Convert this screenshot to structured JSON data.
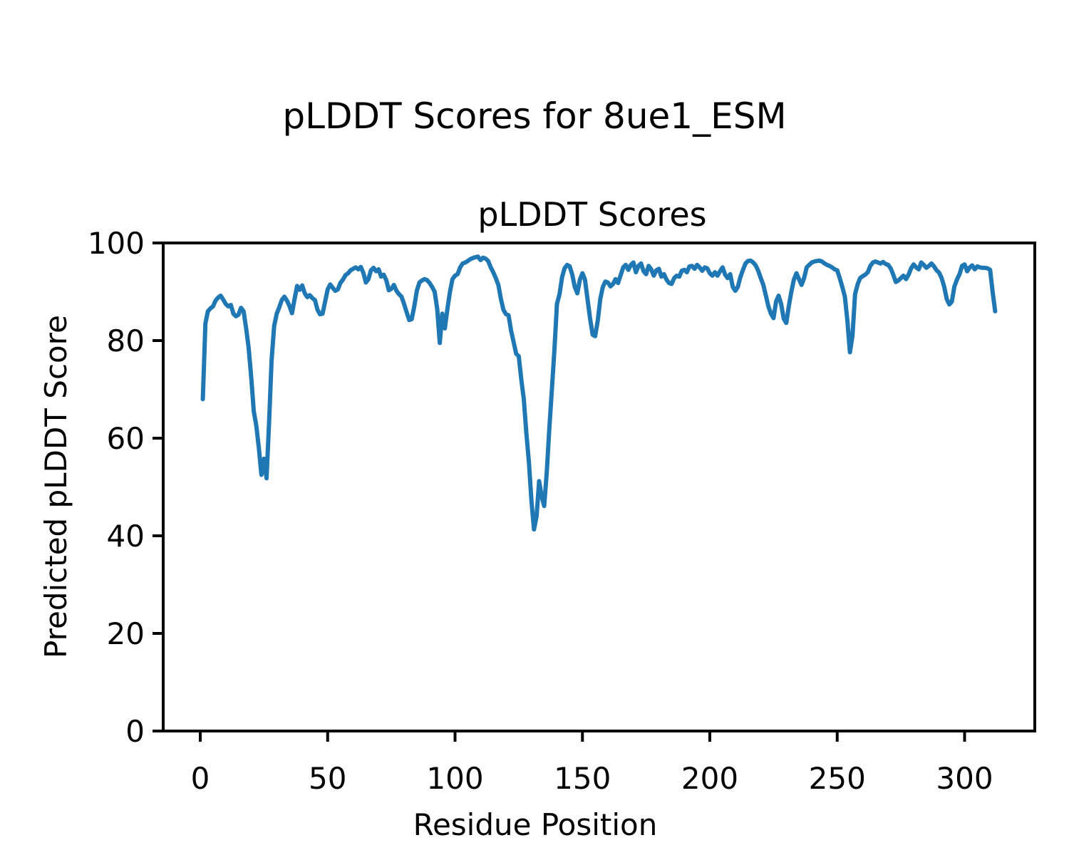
{
  "figure": {
    "suptitle": "pLDDT Scores for 8ue1_ESM"
  },
  "chart_data": {
    "type": "line",
    "title": "pLDDT Scores",
    "xlabel": "Residue Position",
    "ylabel": "Predicted pLDDT Score",
    "line_color": "#1f77b4",
    "axis_color": "#000000",
    "background_color": "#ffffff",
    "grid": false,
    "legend": "none",
    "xlim": [
      -14.55,
      327.55
    ],
    "ylim": [
      0,
      100
    ],
    "x_ticks": [
      0,
      50,
      100,
      150,
      200,
      250,
      300
    ],
    "y_ticks": [
      0,
      20,
      40,
      60,
      80,
      100
    ],
    "series": [
      {
        "name": "pLDDT",
        "points": [
          [
            1,
            68
          ],
          [
            2,
            83.5
          ],
          [
            3,
            86
          ],
          [
            4,
            86.6
          ],
          [
            5,
            87
          ],
          [
            6,
            88.2
          ],
          [
            7,
            88.8
          ],
          [
            8,
            89.2
          ],
          [
            9,
            88.4
          ],
          [
            10,
            87.5
          ],
          [
            11,
            87
          ],
          [
            12,
            87.3
          ],
          [
            13,
            85.5
          ],
          [
            14,
            85
          ],
          [
            15,
            85.3
          ],
          [
            16,
            86.7
          ],
          [
            17,
            86
          ],
          [
            18,
            82.5
          ],
          [
            19,
            78.5
          ],
          [
            20,
            72.5
          ],
          [
            21,
            65.5
          ],
          [
            22,
            62.5
          ],
          [
            23,
            58
          ],
          [
            24,
            52.5
          ],
          [
            25,
            55.8
          ],
          [
            26,
            51.8
          ],
          [
            27,
            63
          ],
          [
            28,
            76
          ],
          [
            29,
            83
          ],
          [
            30,
            85.5
          ],
          [
            31,
            86.8
          ],
          [
            32,
            88.3
          ],
          [
            33,
            89
          ],
          [
            34,
            88.2
          ],
          [
            35,
            87.1
          ],
          [
            36,
            85.6
          ],
          [
            37,
            88.5
          ],
          [
            38,
            91.2
          ],
          [
            39,
            90.4
          ],
          [
            40,
            91.3
          ],
          [
            41,
            89.7
          ],
          [
            42,
            88.9
          ],
          [
            43,
            89.3
          ],
          [
            44,
            88.7
          ],
          [
            45,
            88.3
          ],
          [
            46,
            86.3
          ],
          [
            47,
            85.4
          ],
          [
            48,
            85.5
          ],
          [
            49,
            88
          ],
          [
            50,
            90.5
          ],
          [
            51,
            91.5
          ],
          [
            52,
            90.8
          ],
          [
            53,
            90.2
          ],
          [
            54,
            90.5
          ],
          [
            55,
            91.8
          ],
          [
            56,
            92.5
          ],
          [
            57,
            93.4
          ],
          [
            58,
            93.8
          ],
          [
            59,
            94.4
          ],
          [
            60,
            94.7
          ],
          [
            61,
            95
          ],
          [
            62,
            94.6
          ],
          [
            63,
            95.1
          ],
          [
            64,
            93.9
          ],
          [
            65,
            91.9
          ],
          [
            66,
            92.6
          ],
          [
            67,
            94.4
          ],
          [
            68,
            94.9
          ],
          [
            69,
            94.2
          ],
          [
            70,
            94.6
          ],
          [
            71,
            93.1
          ],
          [
            72,
            93.5
          ],
          [
            73,
            92.4
          ],
          [
            74,
            90.3
          ],
          [
            75,
            90.6
          ],
          [
            76,
            91.4
          ],
          [
            77,
            90.2
          ],
          [
            78,
            89.5
          ],
          [
            79,
            89
          ],
          [
            80,
            87.5
          ],
          [
            81,
            85.8
          ],
          [
            82,
            84.2
          ],
          [
            83,
            84.4
          ],
          [
            84,
            87
          ],
          [
            85,
            90.2
          ],
          [
            86,
            91.9
          ],
          [
            87,
            92.3
          ],
          [
            88,
            92.6
          ],
          [
            89,
            92.4
          ],
          [
            90,
            91.8
          ],
          [
            91,
            91
          ],
          [
            92,
            90
          ],
          [
            93,
            86.5
          ],
          [
            94,
            79.5
          ],
          [
            95,
            85.5
          ],
          [
            96,
            82.5
          ],
          [
            97,
            86.5
          ],
          [
            98,
            90
          ],
          [
            99,
            92.6
          ],
          [
            100,
            93.3
          ],
          [
            101,
            93.6
          ],
          [
            102,
            95
          ],
          [
            103,
            95.8
          ],
          [
            104,
            96
          ],
          [
            105,
            96.3
          ],
          [
            106,
            96.7
          ],
          [
            107,
            96.9
          ],
          [
            108,
            97.1
          ],
          [
            109,
            97.2
          ],
          [
            110,
            96.5
          ],
          [
            111,
            97
          ],
          [
            112,
            96.8
          ],
          [
            113,
            96.3
          ],
          [
            114,
            95
          ],
          [
            115,
            94
          ],
          [
            116,
            92.8
          ],
          [
            117,
            91.4
          ],
          [
            118,
            88.5
          ],
          [
            119,
            86.3
          ],
          [
            120,
            85.4
          ],
          [
            121,
            85.2
          ],
          [
            122,
            82
          ],
          [
            123,
            79.7
          ],
          [
            124,
            77.3
          ],
          [
            125,
            76.8
          ],
          [
            126,
            72
          ],
          [
            127,
            68
          ],
          [
            128,
            61
          ],
          [
            129,
            55
          ],
          [
            130,
            47
          ],
          [
            131,
            41.3
          ],
          [
            132,
            44
          ],
          [
            133,
            51.2
          ],
          [
            134,
            48
          ],
          [
            135,
            46.1
          ],
          [
            136,
            53
          ],
          [
            137,
            62
          ],
          [
            138,
            70
          ],
          [
            139,
            78
          ],
          [
            140,
            87.5
          ],
          [
            141,
            89.5
          ],
          [
            142,
            93
          ],
          [
            143,
            94.8
          ],
          [
            144,
            95.5
          ],
          [
            145,
            95.2
          ],
          [
            146,
            93.5
          ],
          [
            147,
            91
          ],
          [
            148,
            89.7
          ],
          [
            149,
            92.5
          ],
          [
            150,
            93.8
          ],
          [
            151,
            92.5
          ],
          [
            152,
            88.5
          ],
          [
            153,
            84.5
          ],
          [
            154,
            81.2
          ],
          [
            155,
            80.9
          ],
          [
            156,
            84
          ],
          [
            157,
            88.5
          ],
          [
            158,
            91
          ],
          [
            159,
            92.1
          ],
          [
            160,
            91.9
          ],
          [
            161,
            91.1
          ],
          [
            162,
            91.6
          ],
          [
            163,
            92.6
          ],
          [
            164,
            91.8
          ],
          [
            165,
            93.4
          ],
          [
            166,
            95
          ],
          [
            167,
            95.5
          ],
          [
            168,
            94.5
          ],
          [
            169,
            95.5
          ],
          [
            170,
            96
          ],
          [
            171,
            94
          ],
          [
            172,
            95.3
          ],
          [
            173,
            95.8
          ],
          [
            174,
            94.2
          ],
          [
            175,
            93.6
          ],
          [
            176,
            95.3
          ],
          [
            177,
            94.6
          ],
          [
            178,
            93.3
          ],
          [
            179,
            94.4
          ],
          [
            180,
            94.7
          ],
          [
            181,
            93.1
          ],
          [
            182,
            93.6
          ],
          [
            183,
            92.5
          ],
          [
            184,
            91.8
          ],
          [
            185,
            91.6
          ],
          [
            186,
            92.8
          ],
          [
            187,
            93.3
          ],
          [
            188,
            93.1
          ],
          [
            189,
            94.3
          ],
          [
            190,
            94.5
          ],
          [
            191,
            94
          ],
          [
            192,
            95.2
          ],
          [
            193,
            95.3
          ],
          [
            194,
            94.7
          ],
          [
            195,
            95.5
          ],
          [
            196,
            95
          ],
          [
            197,
            94.3
          ],
          [
            198,
            95
          ],
          [
            199,
            94.8
          ],
          [
            200,
            93.8
          ],
          [
            201,
            93.3
          ],
          [
            202,
            94
          ],
          [
            203,
            93.3
          ],
          [
            204,
            94.2
          ],
          [
            205,
            95
          ],
          [
            206,
            93.5
          ],
          [
            207,
            92.8
          ],
          [
            208,
            93.6
          ],
          [
            209,
            91
          ],
          [
            210,
            90.2
          ],
          [
            211,
            91
          ],
          [
            212,
            93
          ],
          [
            213,
            94.5
          ],
          [
            214,
            95.8
          ],
          [
            215,
            96.3
          ],
          [
            216,
            96.4
          ],
          [
            217,
            96
          ],
          [
            218,
            95.4
          ],
          [
            219,
            94.3
          ],
          [
            220,
            92.8
          ],
          [
            221,
            91.4
          ],
          [
            222,
            89.2
          ],
          [
            223,
            87
          ],
          [
            224,
            85.5
          ],
          [
            225,
            84.6
          ],
          [
            226,
            88
          ],
          [
            227,
            89.2
          ],
          [
            228,
            87.5
          ],
          [
            229,
            84.5
          ],
          [
            230,
            83.6
          ],
          [
            231,
            87
          ],
          [
            232,
            90
          ],
          [
            233,
            92.5
          ],
          [
            234,
            93.8
          ],
          [
            235,
            92.6
          ],
          [
            236,
            91.4
          ],
          [
            237,
            92.8
          ],
          [
            238,
            95
          ],
          [
            239,
            95.5
          ],
          [
            240,
            96
          ],
          [
            241,
            96.2
          ],
          [
            242,
            96.3
          ],
          [
            243,
            96.4
          ],
          [
            244,
            96.2
          ],
          [
            245,
            95.8
          ],
          [
            246,
            95.5
          ],
          [
            247,
            95.3
          ],
          [
            248,
            95
          ],
          [
            249,
            94.6
          ],
          [
            250,
            94.4
          ],
          [
            251,
            92.8
          ],
          [
            252,
            91
          ],
          [
            253,
            89
          ],
          [
            254,
            84
          ],
          [
            255,
            77.6
          ],
          [
            256,
            81
          ],
          [
            257,
            89.5
          ],
          [
            258,
            91.5
          ],
          [
            259,
            92.8
          ],
          [
            260,
            93.2
          ],
          [
            261,
            93.5
          ],
          [
            262,
            94
          ],
          [
            263,
            95.3
          ],
          [
            264,
            96
          ],
          [
            265,
            96.2
          ],
          [
            266,
            96
          ],
          [
            267,
            95.8
          ],
          [
            268,
            96.1
          ],
          [
            269,
            95.7
          ],
          [
            270,
            95.5
          ],
          [
            271,
            94.8
          ],
          [
            272,
            93.5
          ],
          [
            273,
            92
          ],
          [
            274,
            92.3
          ],
          [
            275,
            92.8
          ],
          [
            276,
            93.3
          ],
          [
            277,
            92.6
          ],
          [
            278,
            93.5
          ],
          [
            279,
            94.8
          ],
          [
            280,
            95.6
          ],
          [
            281,
            95
          ],
          [
            282,
            94.6
          ],
          [
            283,
            96
          ],
          [
            284,
            95.5
          ],
          [
            285,
            94.9
          ],
          [
            286,
            95.3
          ],
          [
            287,
            95.8
          ],
          [
            288,
            95.2
          ],
          [
            289,
            94.4
          ],
          [
            290,
            93.9
          ],
          [
            291,
            92.8
          ],
          [
            292,
            91
          ],
          [
            293,
            88.5
          ],
          [
            294,
            87.4
          ],
          [
            295,
            88
          ],
          [
            296,
            91.1
          ],
          [
            297,
            92.5
          ],
          [
            298,
            93.6
          ],
          [
            299,
            95.3
          ],
          [
            300,
            95.6
          ],
          [
            301,
            94.2
          ],
          [
            302,
            95
          ],
          [
            303,
            95.4
          ],
          [
            304,
            94.6
          ],
          [
            305,
            95.2
          ],
          [
            306,
            95
          ],
          [
            307,
            94.9
          ],
          [
            308,
            94.9
          ],
          [
            309,
            94.8
          ],
          [
            310,
            94.5
          ],
          [
            311,
            90
          ],
          [
            312,
            86
          ]
        ]
      }
    ]
  }
}
